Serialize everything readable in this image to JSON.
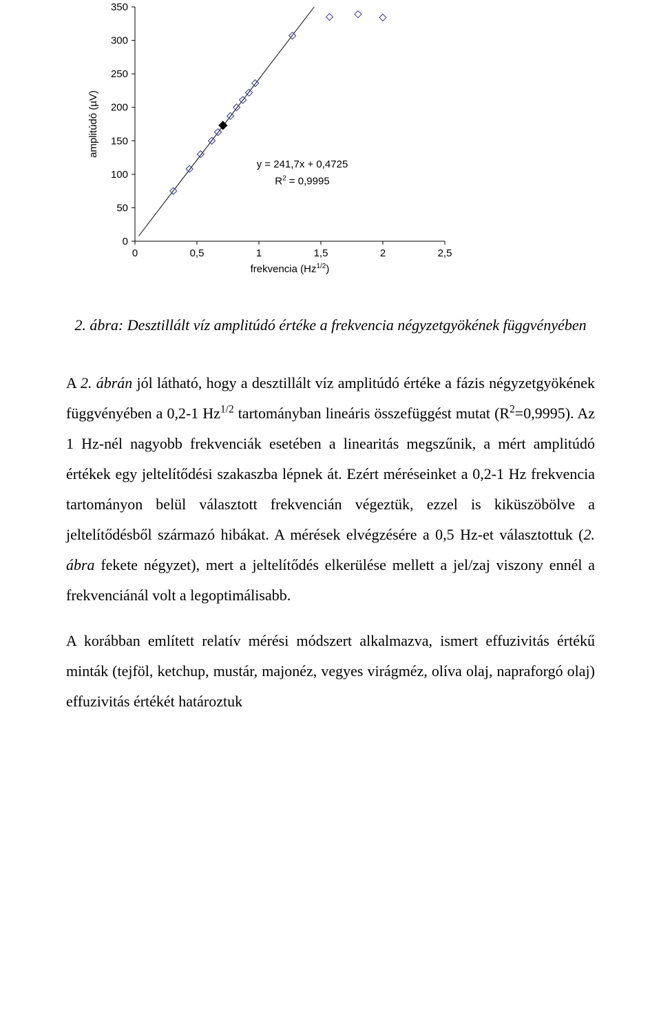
{
  "chart": {
    "type": "scatter",
    "background_color": "#ffffff",
    "axis_color": "#000000",
    "gridline_color": "#000000",
    "tick_font_size": 15,
    "title_font_size": 15,
    "xlabel": "frekvencia (Hz^{1/2})",
    "ylabel": "amplitúdó (µV)",
    "xlim": [
      0,
      2.5
    ],
    "ylim": [
      0,
      350
    ],
    "xtick_positions": [
      0,
      0.5,
      1,
      1.5,
      2,
      2.5
    ],
    "xtick_labels": [
      "0",
      "0,5",
      "1",
      "1,5",
      "2",
      "2,5"
    ],
    "ytick_positions": [
      0,
      50,
      100,
      150,
      200,
      250,
      300,
      350
    ],
    "ytick_labels": [
      "0",
      "50",
      "100",
      "150",
      "200",
      "250",
      "300",
      "350"
    ],
    "equation_line1": "y = 241,7x + 0,4725",
    "equation_line2": "R^{2} = 0,9995",
    "series_open": {
      "marker": "diamond_open",
      "marker_size": 10,
      "marker_stroke": "#333399",
      "marker_fill": "none",
      "points": [
        [
          0.31,
          75
        ],
        [
          0.44,
          108
        ],
        [
          0.53,
          130
        ],
        [
          0.62,
          150
        ],
        [
          0.67,
          163
        ],
        [
          0.77,
          187
        ],
        [
          0.82,
          200
        ],
        [
          0.87,
          211
        ],
        [
          0.92,
          222
        ],
        [
          0.97,
          236
        ],
        [
          1.27,
          307
        ],
        [
          1.57,
          335
        ],
        [
          1.8,
          339
        ],
        [
          2.0,
          334
        ]
      ]
    },
    "series_filled": {
      "marker": "diamond_filled",
      "marker_size": 12,
      "marker_fill": "#000000",
      "points": [
        [
          0.71,
          173
        ]
      ]
    },
    "trendline": {
      "color": "#000000",
      "width": 1,
      "x_range": [
        0.03,
        1.46
      ],
      "slope": 241.7,
      "intercept": 0.4725
    }
  },
  "caption_prefix": "2. ábra:",
  "caption_body": " Desztillált víz amplitúdó értéke a frekvencia négyzetgyökének függvényében",
  "paragraphs": {
    "p1_a": "A ",
    "p1_b": "2. ábrán",
    "p1_c": " jól látható, hogy a desztillált víz amplitúdó értéke a fázis négyzetgyökének függvényében a 0,2-1 Hz",
    "p1_sup1": "1/2",
    "p1_d": " tartományban lineáris összefüggést mutat (R",
    "p1_sup2": "2",
    "p1_e": "=0,9995). Az 1 Hz-nél nagyobb frekvenciák esetében a linearitás megszűnik, a mért amplitúdó értékek egy jeltelítődési szakaszba lépnek át. Ezért méréseinket a 0,2-1 Hz frekvencia tartományon belül választott frekvencián végeztük, ezzel is kiküszöbölve a jeltelítődésből származó hibákat. A mérések elvégzésére a 0,5 Hz-et választottuk (",
    "p1_f": "2. ábra",
    "p1_g": " fekete négyzet), mert a jeltelítődés elkerülése mellett a jel/zaj viszony ennél a frekvenciánál volt a legoptimálisabb.",
    "p2": "A korábban említett relatív mérési módszert alkalmazva, ismert effuzivitás értékű minták (tejföl, ketchup, mustár, majonéz, vegyes virágméz, olíva olaj, napraforgó olaj) effuzivitás értékét határoztuk"
  }
}
